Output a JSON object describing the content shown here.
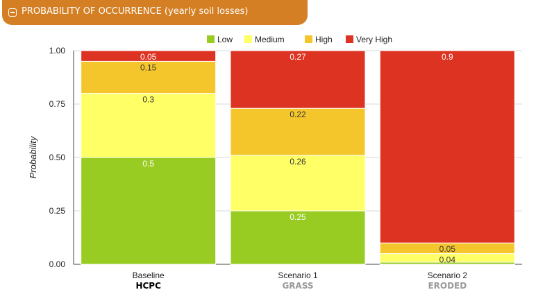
{
  "panel": {
    "title": "PROBABILITY OF OCCURRENCE (yearly soil losses)"
  },
  "chart_data": {
    "type": "bar",
    "stacked": true,
    "ylabel": "Probability",
    "ylim": [
      0,
      1
    ],
    "yticks": [
      "1.00",
      "0.75",
      "0.50",
      "0.25",
      "0.00"
    ],
    "categories": [
      "Baseline",
      "Scenario 1",
      "Scenario 2"
    ],
    "subcategories": [
      {
        "label": "HCPC",
        "color": "#000000"
      },
      {
        "label": "GRASS",
        "color": "#9a9a9a"
      },
      {
        "label": "ERODED",
        "color": "#9a9a9a"
      }
    ],
    "legend_position": "top",
    "series": [
      {
        "name": "Low",
        "color": "#99cc22",
        "values": [
          0.5,
          0.25,
          0.01
        ],
        "labels": [
          "0.5",
          "0.25",
          ""
        ]
      },
      {
        "name": "Medium",
        "color": "#ffff66",
        "values": [
          0.3,
          0.26,
          0.04
        ],
        "labels": [
          "0.3",
          "0.26",
          "0.04"
        ]
      },
      {
        "name": "High",
        "color": "#f5c62c",
        "values": [
          0.15,
          0.22,
          0.05
        ],
        "labels": [
          "0.15",
          "0.22",
          "0.05"
        ]
      },
      {
        "name": "Very High",
        "color": "#dd3322",
        "values": [
          0.05,
          0.27,
          0.9
        ],
        "labels": [
          "0.05",
          "0.27",
          "0.9"
        ]
      }
    ]
  }
}
